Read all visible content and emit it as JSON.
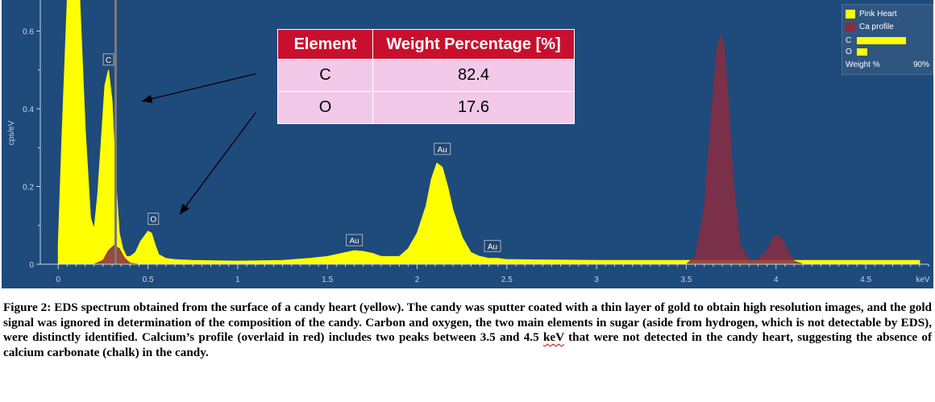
{
  "chart_data": {
    "type": "area",
    "ylabel": "cps/eV",
    "x_unit_label": "keV",
    "xlim": [
      -0.1,
      4.85
    ],
    "ylim": [
      0,
      0.68
    ],
    "x_ticks": [
      0,
      0.5,
      1,
      1.5,
      2,
      2.5,
      3,
      3.5,
      4,
      4.5
    ],
    "x_tick_labels": [
      "0",
      "0.5",
      "1",
      "1.5",
      "2",
      "2.5",
      "3",
      "3.5",
      "4",
      "4.5"
    ],
    "y_ticks": [
      0,
      0.2,
      0.4,
      0.6
    ],
    "y_tick_labels": [
      "0",
      "0.2",
      "0.4",
      "0.6"
    ],
    "grid": false,
    "legend_position": "top-right",
    "series": [
      {
        "name": "Pink Heart",
        "color": "#ffff00",
        "x": [
          0.0,
          0.02,
          0.05,
          0.08,
          0.1,
          0.12,
          0.15,
          0.18,
          0.2,
          0.22,
          0.24,
          0.26,
          0.28,
          0.3,
          0.32,
          0.34,
          0.36,
          0.38,
          0.4,
          0.43,
          0.46,
          0.5,
          0.52,
          0.54,
          0.56,
          0.6,
          0.65,
          0.75,
          1.0,
          1.25,
          1.4,
          1.5,
          1.6,
          1.65,
          1.7,
          1.75,
          1.8,
          1.9,
          1.95,
          2.0,
          2.05,
          2.08,
          2.11,
          2.14,
          2.17,
          2.2,
          2.25,
          2.3,
          2.35,
          2.4,
          2.45,
          2.5,
          3.0,
          3.5,
          4.0,
          4.5,
          4.8
        ],
        "values": [
          0.05,
          0.32,
          0.72,
          0.72,
          0.72,
          0.72,
          0.35,
          0.12,
          0.09,
          0.18,
          0.32,
          0.46,
          0.5,
          0.42,
          0.22,
          0.08,
          0.04,
          0.02,
          0.02,
          0.03,
          0.06,
          0.085,
          0.08,
          0.05,
          0.025,
          0.015,
          0.012,
          0.01,
          0.008,
          0.01,
          0.015,
          0.02,
          0.03,
          0.035,
          0.033,
          0.028,
          0.02,
          0.02,
          0.04,
          0.08,
          0.15,
          0.22,
          0.26,
          0.25,
          0.2,
          0.14,
          0.07,
          0.03,
          0.02,
          0.015,
          0.015,
          0.012,
          0.01,
          0.01,
          0.01,
          0.01,
          0.01
        ]
      },
      {
        "name": "Ca profile",
        "color": "#8a2b3f",
        "x": [
          0.2,
          0.25,
          0.28,
          0.31,
          0.34,
          0.37,
          0.4,
          0.45,
          3.5,
          3.55,
          3.6,
          3.64,
          3.67,
          3.69,
          3.71,
          3.73,
          3.76,
          3.8,
          3.85,
          3.9,
          3.95,
          3.98,
          4.01,
          4.04,
          4.07,
          4.1,
          4.15
        ],
        "values": [
          0.0,
          0.01,
          0.035,
          0.048,
          0.04,
          0.015,
          0.003,
          0.0,
          0.0,
          0.02,
          0.14,
          0.38,
          0.55,
          0.59,
          0.56,
          0.45,
          0.22,
          0.05,
          0.01,
          0.012,
          0.035,
          0.065,
          0.075,
          0.06,
          0.03,
          0.008,
          0.0
        ]
      }
    ],
    "peak_labels": [
      {
        "label": "C",
        "x": 0.28,
        "y": 0.5
      },
      {
        "label": "O",
        "x": 0.53,
        "y": 0.09
      },
      {
        "label": "Au",
        "x": 1.65,
        "y": 0.035
      },
      {
        "label": "Au",
        "x": 2.14,
        "y": 0.27
      },
      {
        "label": "Au",
        "x": 2.42,
        "y": 0.02
      }
    ],
    "marker_line_x": 0.32,
    "arrows": [
      {
        "from": [
          1.1,
          0.49
        ],
        "to": [
          0.47,
          0.42
        ]
      },
      {
        "from": [
          1.1,
          0.39
        ],
        "to": [
          0.68,
          0.13
        ]
      }
    ]
  },
  "table": {
    "headers": [
      "Element",
      "Weight Percentage [%]"
    ],
    "rows": [
      [
        "C",
        "82.4"
      ],
      [
        "O",
        "17.6"
      ]
    ],
    "header_color": "#c8102e",
    "row_color": "#f2c9e9"
  },
  "legend": {
    "items": [
      {
        "label": "Pink Heart",
        "color": "#ffff00"
      },
      {
        "label": "Ca profile",
        "color": "#8a2b3f"
      }
    ],
    "composition": [
      {
        "element": "C",
        "value": 82.4
      },
      {
        "element": "O",
        "value": 17.6
      }
    ],
    "footer_label": "Weight %",
    "footer_value": "90%"
  },
  "caption": {
    "text_before": "Figure 2: EDS spectrum obtained from the surface of a candy heart (yellow).  The candy was sputter coated with a thin layer of gold to obtain high resolution images, and the gold signal was ignored in determination of the composition of the candy.   Carbon and oxygen, the two main elements in sugar (aside from hydrogen, which is not detectable by EDS), were distinctly identified.  Calcium’s profile (overlaid in red) includes two peaks between 3.5 and 4.5 ",
    "underlined": "keV",
    "text_after": " that were not detected in the candy heart, suggesting the absence of calcium carbonate (chalk) in the candy."
  },
  "colors": {
    "plot_background": "#1e4a7c",
    "axis": "#c9d6e6"
  }
}
